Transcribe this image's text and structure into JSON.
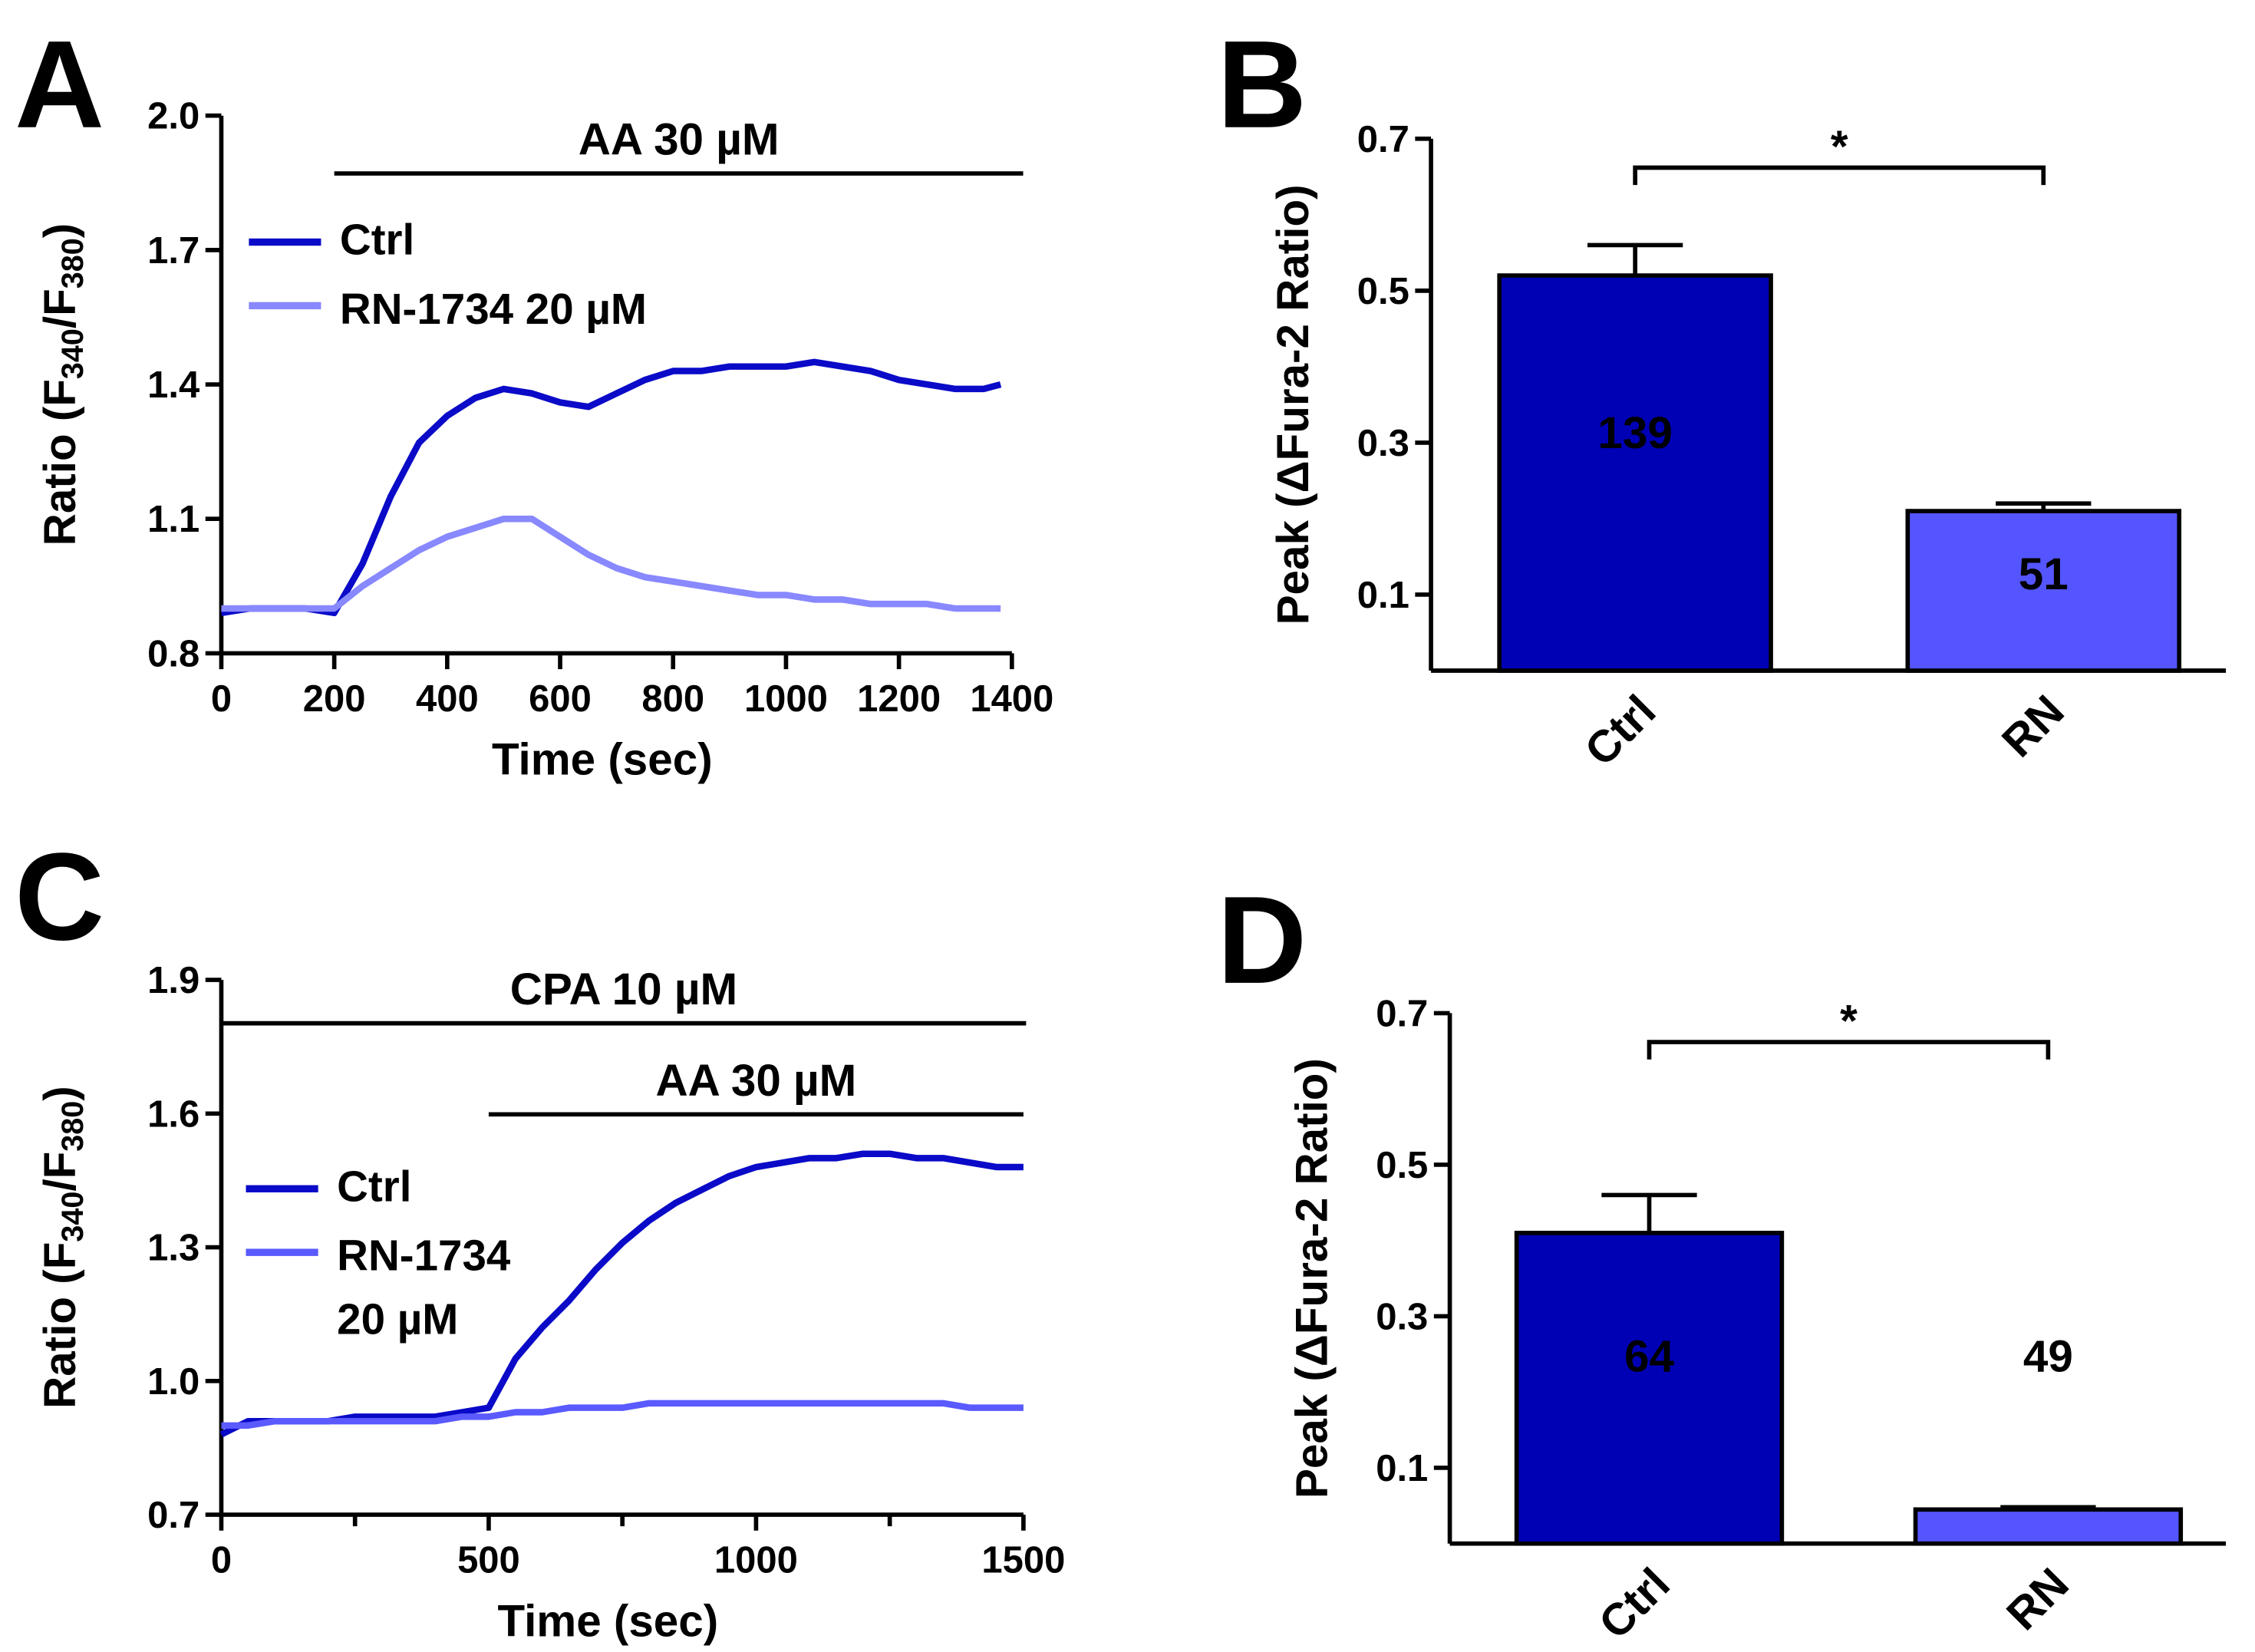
{
  "chart_data": [
    {
      "type": "line",
      "panel": "A",
      "ylabel": [
        "Ratio (F",
        "340",
        "/F",
        "380",
        ")"
      ],
      "xlabel": "Time (sec)",
      "annotations": [
        {
          "text": "AA 30 µM",
          "range": [
            200,
            1420
          ]
        }
      ],
      "x": [
        0,
        50,
        100,
        150,
        200,
        250,
        300,
        350,
        400,
        450,
        500,
        550,
        600,
        650,
        700,
        750,
        800,
        850,
        900,
        950,
        1000,
        1050,
        1100,
        1150,
        1200,
        1250,
        1300,
        1350,
        1380
      ],
      "series": [
        {
          "name": "Ctrl",
          "color": "#0a0ac8",
          "values": [
            0.89,
            0.9,
            0.9,
            0.9,
            0.89,
            1.0,
            1.15,
            1.27,
            1.33,
            1.37,
            1.39,
            1.38,
            1.36,
            1.35,
            1.38,
            1.41,
            1.43,
            1.43,
            1.44,
            1.44,
            1.44,
            1.45,
            1.44,
            1.43,
            1.41,
            1.4,
            1.39,
            1.39,
            1.4
          ]
        },
        {
          "name": "RN-1734 20 µM",
          "color": "#8888ff",
          "values": [
            0.9,
            0.9,
            0.9,
            0.9,
            0.9,
            0.95,
            0.99,
            1.03,
            1.06,
            1.08,
            1.1,
            1.1,
            1.06,
            1.02,
            0.99,
            0.97,
            0.96,
            0.95,
            0.94,
            0.93,
            0.93,
            0.92,
            0.92,
            0.91,
            0.91,
            0.91,
            0.9,
            0.9,
            0.9
          ]
        }
      ],
      "xlim": [
        0,
        1400
      ],
      "xticks": [
        0,
        200,
        400,
        600,
        800,
        1000,
        1200,
        1400
      ],
      "ylim": [
        0.8,
        2.0
      ],
      "yticks": [
        0.8,
        1.1,
        1.4,
        1.7,
        {
          "value": 2.0,
          "label": "2.0"
        }
      ]
    },
    {
      "type": "bar",
      "panel": "B",
      "ylabel": "Peak (ΔFura-2 Ratio)",
      "categories": [
        "Ctrl",
        "RN"
      ],
      "values": [
        0.52,
        0.21
      ],
      "errors": [
        0.04,
        0.01
      ],
      "colors": [
        "#0000b4",
        "#5555ff"
      ],
      "n": [
        139,
        51
      ],
      "significance": "*",
      "ylim": [
        0,
        0.7
      ],
      "yticks": [
        0.1,
        0.3,
        0.5,
        0.7
      ]
    },
    {
      "type": "line",
      "panel": "C",
      "ylabel": [
        "Ratio (F",
        "340",
        "/F",
        "380",
        ")"
      ],
      "xlabel": "Time (sec)",
      "annotations": [
        {
          "text": "CPA 10 µM",
          "range": [
            0,
            1505
          ]
        },
        {
          "text": "AA 30 µM",
          "range": [
            500,
            1500
          ]
        }
      ],
      "x": [
        0,
        50,
        100,
        150,
        200,
        250,
        300,
        350,
        400,
        450,
        500,
        550,
        600,
        650,
        700,
        750,
        800,
        850,
        900,
        950,
        1000,
        1050,
        1100,
        1150,
        1200,
        1250,
        1300,
        1350,
        1400,
        1450,
        1500
      ],
      "series": [
        {
          "name": "Ctrl",
          "color": "#0a0ac8",
          "values": [
            0.88,
            0.91,
            0.91,
            0.91,
            0.91,
            0.92,
            0.92,
            0.92,
            0.92,
            0.93,
            0.94,
            1.05,
            1.12,
            1.18,
            1.25,
            1.31,
            1.36,
            1.4,
            1.43,
            1.46,
            1.48,
            1.49,
            1.5,
            1.5,
            1.51,
            1.51,
            1.5,
            1.5,
            1.49,
            1.48,
            1.48
          ]
        },
        {
          "name": "RN-1734 20 µM",
          "color": "#5a5aff",
          "values": [
            0.9,
            0.9,
            0.91,
            0.91,
            0.91,
            0.91,
            0.91,
            0.91,
            0.91,
            0.92,
            0.92,
            0.93,
            0.93,
            0.94,
            0.94,
            0.94,
            0.95,
            0.95,
            0.95,
            0.95,
            0.95,
            0.95,
            0.95,
            0.95,
            0.95,
            0.95,
            0.95,
            0.95,
            0.94,
            0.94,
            0.94
          ]
        }
      ],
      "xlim": [
        0,
        1500
      ],
      "xticks": [
        0,
        500,
        1000,
        1500
      ],
      "xminorticks": [
        250,
        750,
        1250
      ],
      "ylim": [
        0.7,
        1.9
      ],
      "yticks": [
        0.7,
        {
          "value": 1.0,
          "label": "1.0"
        },
        1.3,
        1.6,
        1.9
      ]
    },
    {
      "type": "bar",
      "panel": "D",
      "ylabel": "Peak (ΔFura-2 Ratio)",
      "categories": [
        "Ctrl",
        "RN"
      ],
      "values": [
        0.41,
        0.045
      ],
      "errors": [
        0.05,
        0.003
      ],
      "colors": [
        "#0000b4",
        "#5555ff"
      ],
      "n": [
        64,
        49
      ],
      "significance": "*",
      "ylim": [
        0,
        0.7
      ],
      "yticks": [
        0.1,
        0.3,
        0.5,
        0.7
      ]
    }
  ]
}
